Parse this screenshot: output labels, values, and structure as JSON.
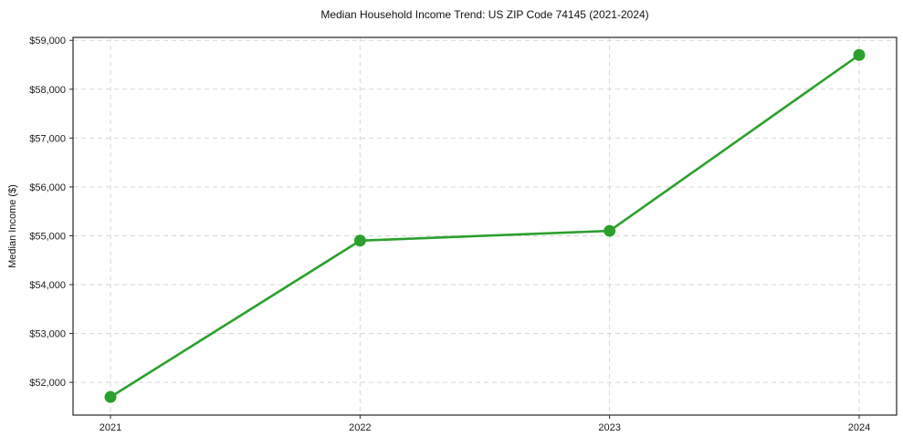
{
  "chart_data": {
    "type": "line",
    "title": "Median Household Income Trend: US ZIP Code 74145 (2021-2024)",
    "xlabel": "",
    "ylabel": "Median Income ($)",
    "x": [
      2021,
      2022,
      2023,
      2024
    ],
    "series": [
      {
        "name": "Median Household Income",
        "values": [
          51700,
          54900,
          55100,
          58700
        ]
      }
    ],
    "xlim": [
      2020.85,
      2024.15
    ],
    "ylim": [
      51330,
      59060
    ],
    "xticks": [
      2021,
      2022,
      2023,
      2024
    ],
    "xtick_labels": [
      "2021",
      "2022",
      "2023",
      "2024"
    ],
    "yticks": [
      52000,
      53000,
      54000,
      55000,
      56000,
      57000,
      58000,
      59000
    ],
    "ytick_labels": [
      "$52,000",
      "$53,000",
      "$54,000",
      "$55,000",
      "$56,000",
      "$57,000",
      "$58,000",
      "$59,000"
    ],
    "grid": true,
    "grid_style": "dashed",
    "grid_color": "#d6d6d6",
    "line_color": "#2ca02c",
    "marker": "circle",
    "marker_radius": 6.5,
    "legend": "none"
  }
}
